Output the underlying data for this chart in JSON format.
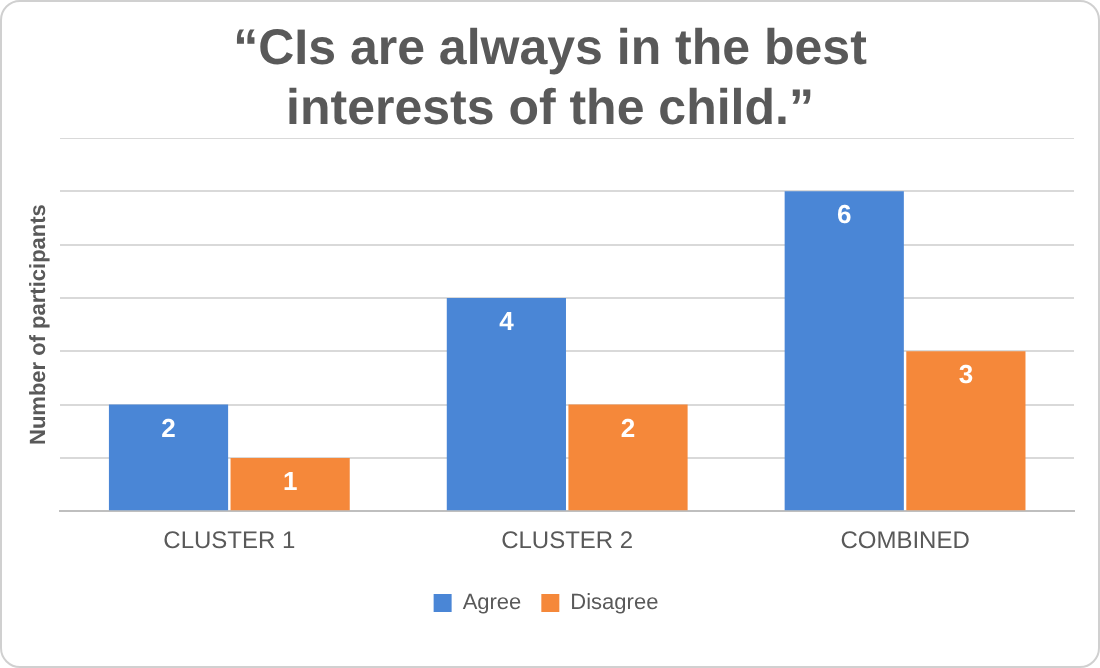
{
  "chart_data": {
    "type": "bar",
    "title": "“CIs are always in the best interests of the child.”",
    "ylabel": "Number of participants",
    "categories": [
      "CLUSTER 1",
      "CLUSTER 2",
      "COMBINED"
    ],
    "series": [
      {
        "name": "Agree",
        "color": "#4a86d6",
        "values": [
          2,
          4,
          6
        ]
      },
      {
        "name": "Disagree",
        "color": "#f5883a",
        "values": [
          1,
          2,
          3
        ]
      }
    ],
    "ylim": [
      0,
      7
    ],
    "yticks": [
      {
        "value": 0,
        "label": null
      },
      {
        "value": 1,
        "label": null
      },
      {
        "value": 2,
        "label": null
      },
      {
        "value": 3,
        "label": null
      },
      {
        "value": 4,
        "label": null
      },
      {
        "value": 5,
        "label": null
      },
      {
        "value": 6,
        "label": null
      },
      {
        "value": 7,
        "label": null
      }
    ],
    "tick_labels": "x",
    "grid": "y",
    "legend": "bottom",
    "data_labels": true
  }
}
